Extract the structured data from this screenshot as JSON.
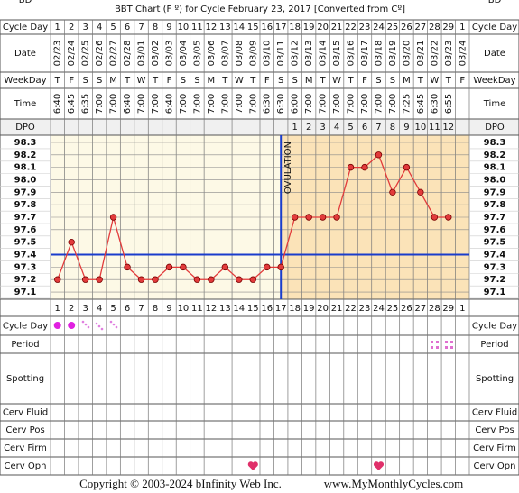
{
  "title": "BBT Chart (F º) for Cycle February 23, 2017  [Converted from Cº]",
  "table": {
    "row_labels": [
      "Cycle Day",
      "Date",
      "WeekDay",
      "Time",
      "DPO",
      "Cycle Day",
      "Period",
      "Spotting",
      "Cerv Fluid",
      "Cerv Pos",
      "Cerv Firm",
      "Cerv Opn",
      "BD"
    ],
    "cycle_days": [
      1,
      2,
      3,
      4,
      5,
      6,
      7,
      8,
      9,
      10,
      11,
      12,
      13,
      14,
      15,
      16,
      17,
      18,
      19,
      20,
      21,
      22,
      23,
      24,
      25,
      26,
      27,
      28,
      29,
      1
    ],
    "dates": [
      "02/23",
      "02/24",
      "02/25",
      "02/26",
      "02/27",
      "02/28",
      "03/01",
      "03/02",
      "03/03",
      "03/04",
      "03/05",
      "03/06",
      "03/07",
      "03/08",
      "03/09",
      "03/10",
      "03/11",
      "03/12",
      "03/13",
      "03/14",
      "03/15",
      "03/16",
      "03/17",
      "03/18",
      "03/19",
      "03/20",
      "03/21",
      "03/22",
      "03/23",
      "03/24"
    ],
    "weekdays": [
      "T",
      "F",
      "S",
      "S",
      "M",
      "T",
      "W",
      "T",
      "F",
      "S",
      "S",
      "M",
      "T",
      "W",
      "T",
      "F",
      "S",
      "S",
      "M",
      "T",
      "W",
      "T",
      "F",
      "S",
      "S",
      "M",
      "T",
      "W",
      "T",
      "F"
    ],
    "times": [
      "6:40",
      "6:45",
      "6:35",
      "7:00",
      "7:00",
      "6:40",
      "7:00",
      "7:00",
      "6:40",
      "7:00",
      "7:00",
      "7:00",
      "7:00",
      "7:00",
      "7:00",
      "6:30",
      "6:30",
      "6:00",
      "7:00",
      "7:00",
      "7:00",
      "7:00",
      "7:00",
      "7:00",
      "7:00",
      "7:25",
      "6:45",
      "6:30",
      "6:55",
      null
    ],
    "dpo": [
      null,
      null,
      null,
      null,
      null,
      null,
      null,
      null,
      null,
      null,
      null,
      null,
      null,
      null,
      null,
      null,
      null,
      1,
      2,
      3,
      4,
      5,
      6,
      7,
      8,
      9,
      10,
      11,
      12,
      null
    ]
  },
  "chart_data": {
    "type": "line",
    "color": "#e23b3b",
    "grid": true,
    "values": [
      97.2,
      97.5,
      97.2,
      97.2,
      97.7,
      97.3,
      97.2,
      97.2,
      97.3,
      97.3,
      97.2,
      97.2,
      97.3,
      97.2,
      97.2,
      97.3,
      97.3,
      97.7,
      97.7,
      97.7,
      97.7,
      98.1,
      98.1,
      98.2,
      97.9,
      98.1,
      97.9,
      97.7,
      97.7,
      null
    ],
    "ylim": [
      97.05,
      98.35
    ],
    "yticks": [
      97.1,
      97.2,
      97.3,
      97.4,
      97.5,
      97.6,
      97.7,
      97.8,
      97.9,
      {
        "value": 98,
        "label": "98.0"
      },
      98.1,
      98.2,
      98.3
    ],
    "coverline": 97.4,
    "ovulation_day": 17,
    "ovulation_label": "OVULATION"
  },
  "footer": {
    "copyright": "Copyright © 2003-2024 bInfinity Web Inc.",
    "site": "www.MyMonthlyCycles.com"
  }
}
